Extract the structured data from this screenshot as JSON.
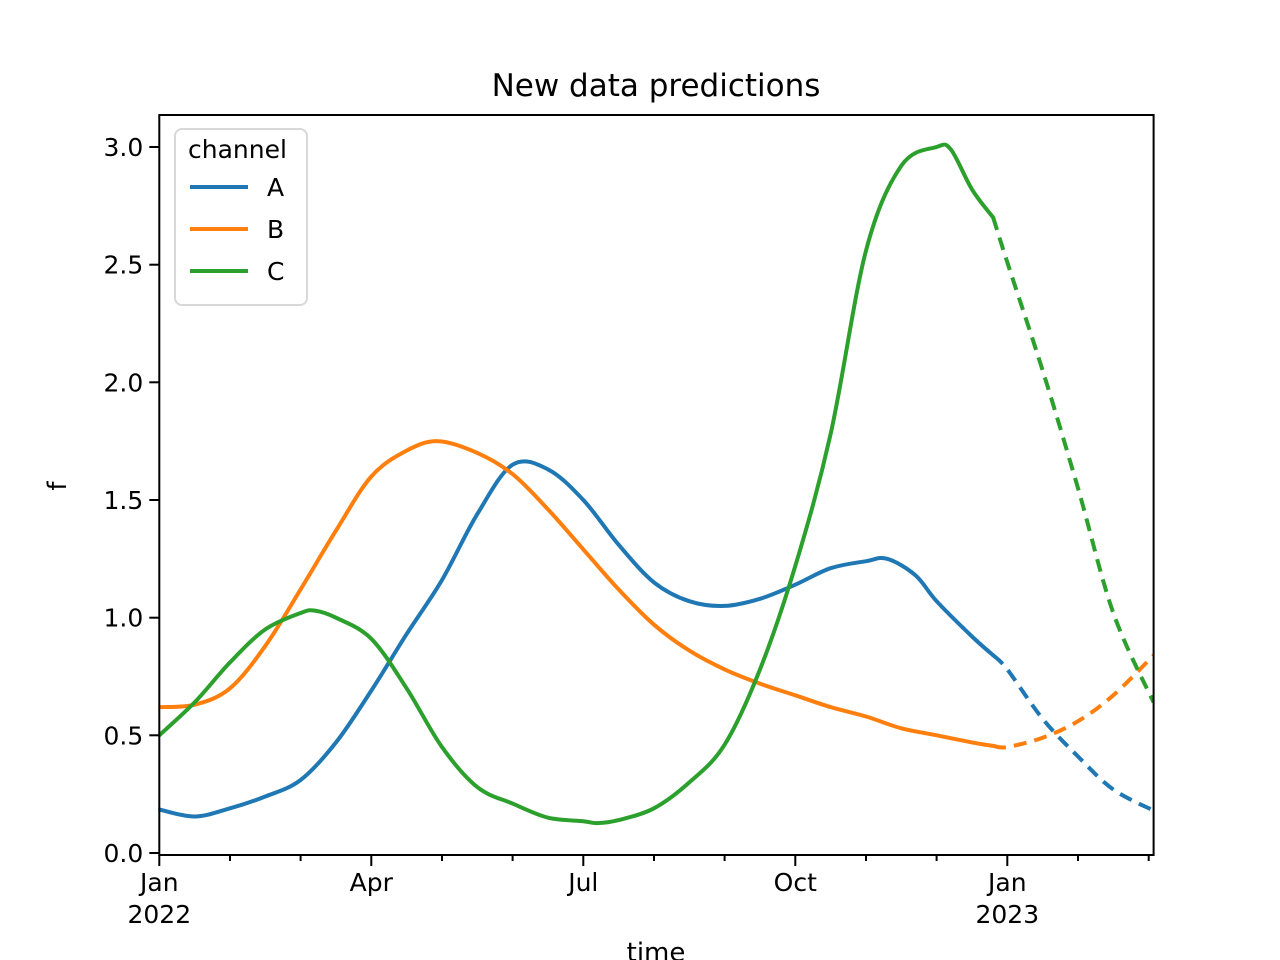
{
  "chart_data": {
    "type": "line",
    "title": "New data predictions",
    "xlabel": "time",
    "ylabel": "f",
    "grid": false,
    "background_color": "#ffffff",
    "axis_color": "#000000",
    "x_unit": "months since Jan 1 2022",
    "xlim": [
      0,
      14.07
    ],
    "ylim": [
      -0.0085,
      3.136
    ],
    "x_axis": {
      "major_ticks": [
        {
          "t": 0,
          "lines": [
            "Jan",
            "2022"
          ]
        },
        {
          "t": 3,
          "lines": [
            "Apr"
          ]
        },
        {
          "t": 6,
          "lines": [
            "Jul"
          ]
        },
        {
          "t": 9,
          "lines": [
            "Oct"
          ]
        },
        {
          "t": 12,
          "lines": [
            "Jan",
            "2023"
          ]
        }
      ],
      "minor_ticks": [
        1,
        2,
        4,
        5,
        7,
        8,
        10,
        11,
        13,
        14
      ]
    },
    "y_axis": {
      "major_ticks": [
        {
          "v": 0.0,
          "label": "0.0"
        },
        {
          "v": 0.5,
          "label": "0.5"
        },
        {
          "v": 1.0,
          "label": "1.0"
        },
        {
          "v": 1.5,
          "label": "1.5"
        },
        {
          "v": 2.0,
          "label": "2.0"
        },
        {
          "v": 2.5,
          "label": "2.5"
        },
        {
          "v": 3.0,
          "label": "3.0"
        }
      ]
    },
    "legend": {
      "title": "channel",
      "position": "upper left",
      "border_color": "#d8d8d8"
    },
    "forecast_start": 11.8,
    "line_style": {
      "width": 4,
      "history_style": "solid",
      "forecast_style": "dashed",
      "dash_pattern": [
        13,
        8
      ]
    },
    "series": [
      {
        "name": "A",
        "color": "#1f77b4",
        "points": [
          [
            0,
            0.185
          ],
          [
            0.5,
            0.155
          ],
          [
            1,
            0.19
          ],
          [
            1.5,
            0.24
          ],
          [
            2,
            0.31
          ],
          [
            2.5,
            0.47
          ],
          [
            3,
            0.69
          ],
          [
            3.5,
            0.93
          ],
          [
            4,
            1.16
          ],
          [
            4.5,
            1.44
          ],
          [
            5,
            1.65
          ],
          [
            5.5,
            1.63
          ],
          [
            6,
            1.5
          ],
          [
            6.5,
            1.31
          ],
          [
            7,
            1.15
          ],
          [
            7.5,
            1.07
          ],
          [
            8,
            1.05
          ],
          [
            8.5,
            1.08
          ],
          [
            9,
            1.14
          ],
          [
            9.5,
            1.21
          ],
          [
            10,
            1.24
          ],
          [
            10.3,
            1.25
          ],
          [
            10.7,
            1.18
          ],
          [
            11,
            1.07
          ],
          [
            11.5,
            0.92
          ],
          [
            11.8,
            0.84
          ],
          [
            12,
            0.78
          ],
          [
            12.5,
            0.57
          ],
          [
            13,
            0.41
          ],
          [
            13.5,
            0.27
          ],
          [
            14.07,
            0.18
          ]
        ]
      },
      {
        "name": "B",
        "color": "#ff7f0e",
        "points": [
          [
            0,
            0.62
          ],
          [
            0.5,
            0.63
          ],
          [
            1,
            0.7
          ],
          [
            1.5,
            0.88
          ],
          [
            2,
            1.12
          ],
          [
            2.5,
            1.37
          ],
          [
            3,
            1.6
          ],
          [
            3.5,
            1.71
          ],
          [
            3.95,
            1.75
          ],
          [
            4.5,
            1.7
          ],
          [
            5,
            1.61
          ],
          [
            5.5,
            1.46
          ],
          [
            6,
            1.29
          ],
          [
            6.5,
            1.12
          ],
          [
            7,
            0.97
          ],
          [
            7.5,
            0.86
          ],
          [
            8,
            0.78
          ],
          [
            8.5,
            0.72
          ],
          [
            9,
            0.67
          ],
          [
            9.5,
            0.62
          ],
          [
            10,
            0.58
          ],
          [
            10.5,
            0.53
          ],
          [
            11,
            0.5
          ],
          [
            11.5,
            0.47
          ],
          [
            11.8,
            0.455
          ],
          [
            12,
            0.45
          ],
          [
            12.5,
            0.49
          ],
          [
            13,
            0.56
          ],
          [
            13.5,
            0.67
          ],
          [
            14.07,
            0.84
          ]
        ]
      },
      {
        "name": "C",
        "color": "#2ca02c",
        "points": [
          [
            0,
            0.5
          ],
          [
            0.5,
            0.64
          ],
          [
            1,
            0.81
          ],
          [
            1.5,
            0.95
          ],
          [
            2,
            1.02
          ],
          [
            2.2,
            1.03
          ],
          [
            2.5,
            1.0
          ],
          [
            3,
            0.91
          ],
          [
            3.5,
            0.7
          ],
          [
            4,
            0.45
          ],
          [
            4.5,
            0.28
          ],
          [
            5,
            0.21
          ],
          [
            5.5,
            0.15
          ],
          [
            6,
            0.135
          ],
          [
            6.2,
            0.127
          ],
          [
            6.5,
            0.14
          ],
          [
            7,
            0.19
          ],
          [
            7.5,
            0.3
          ],
          [
            8,
            0.46
          ],
          [
            8.5,
            0.78
          ],
          [
            9,
            1.22
          ],
          [
            9.5,
            1.78
          ],
          [
            10,
            2.56
          ],
          [
            10.5,
            2.92
          ],
          [
            11,
            3.0
          ],
          [
            11.2,
            2.99
          ],
          [
            11.5,
            2.82
          ],
          [
            11.8,
            2.7
          ],
          [
            12,
            2.51
          ],
          [
            12.5,
            2.05
          ],
          [
            13,
            1.55
          ],
          [
            13.5,
            1.02
          ],
          [
            14.07,
            0.64
          ]
        ]
      }
    ]
  }
}
